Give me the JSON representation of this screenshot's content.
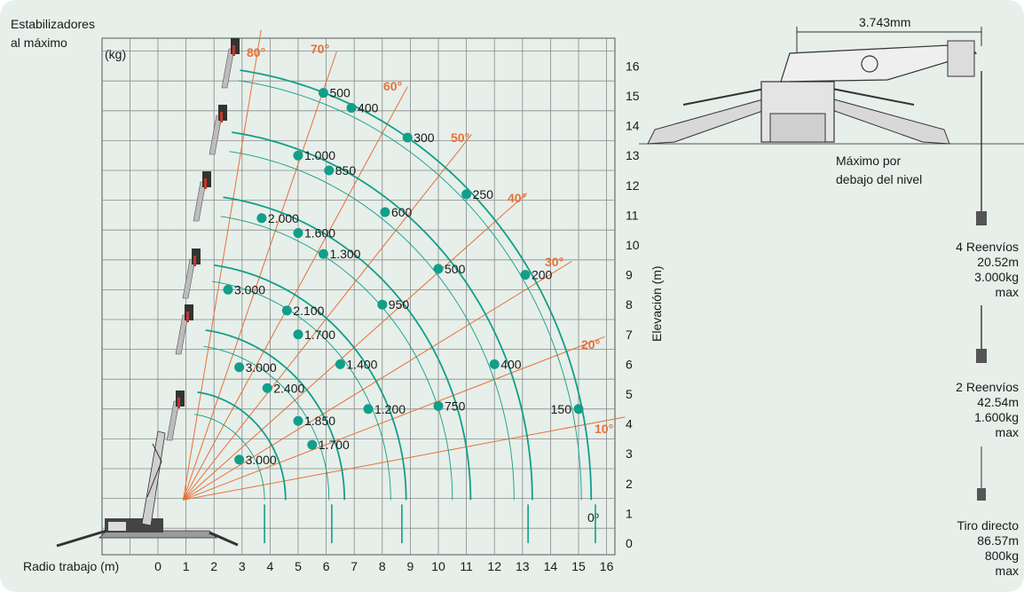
{
  "labels": {
    "stabilizers_line1": "Estabilizadores",
    "stabilizers_line2": "al máximo",
    "kg": "(kg)",
    "radius": "Radio trabajo (m)",
    "elevation": "Elevación (m)",
    "dimension": "3.743mm",
    "below_line1": "Máximo por",
    "below_line2": "debajo del nivel"
  },
  "x_ticks": [
    "0",
    "1",
    "2",
    "3",
    "4",
    "5",
    "6",
    "7",
    "8",
    "9",
    "10",
    "11",
    "12",
    "13",
    "14",
    "15",
    "16"
  ],
  "y_ticks": [
    "0",
    "1",
    "2",
    "3",
    "4",
    "5",
    "6",
    "7",
    "8",
    "9",
    "10",
    "11",
    "12",
    "13",
    "14",
    "15",
    "16"
  ],
  "angles": [
    {
      "label": "80°",
      "deg": 80
    },
    {
      "label": "70°",
      "deg": 70
    },
    {
      "label": "60°",
      "deg": 60
    },
    {
      "label": "50°",
      "deg": 50
    },
    {
      "label": "40°",
      "deg": 40
    },
    {
      "label": "30°",
      "deg": 30
    },
    {
      "label": "20°",
      "deg": 20
    },
    {
      "label": "10°",
      "deg": 10
    },
    {
      "label": "0º",
      "deg": 0
    }
  ],
  "boom_pivot": {
    "x": 0.9,
    "y": 1.45
  },
  "boom_lengths": [
    3.3,
    5.4,
    7.6,
    9.9,
    12.1,
    14.2
  ],
  "thin_arcs": [
    2.9,
    5.2,
    7.4,
    9.6,
    11.8,
    14.2
  ],
  "ground_ends": [
    3.8,
    6.2,
    8.7,
    13.2,
    15.6
  ],
  "load_points": [
    {
      "x": 2.9,
      "y": 2.8,
      "label": "3.000"
    },
    {
      "x": 2.9,
      "y": 5.9,
      "label": "3.000"
    },
    {
      "x": 2.5,
      "y": 8.5,
      "label": "3.000"
    },
    {
      "x": 3.7,
      "y": 10.9,
      "label": "2.000"
    },
    {
      "x": 5.0,
      "y": 13.0,
      "label": "1.000"
    },
    {
      "x": 5.9,
      "y": 15.1,
      "label": "500"
    },
    {
      "x": 3.9,
      "y": 5.2,
      "label": "2.400"
    },
    {
      "x": 4.6,
      "y": 7.8,
      "label": "2.100"
    },
    {
      "x": 5.0,
      "y": 10.4,
      "label": "1.600"
    },
    {
      "x": 6.1,
      "y": 12.5,
      "label": "850"
    },
    {
      "x": 6.9,
      "y": 14.6,
      "label": "400"
    },
    {
      "x": 5.0,
      "y": 4.1,
      "label": "1.850"
    },
    {
      "x": 5.5,
      "y": 3.3,
      "label": "1.700"
    },
    {
      "x": 5.0,
      "y": 7.0,
      "label": "1.700"
    },
    {
      "x": 5.9,
      "y": 9.7,
      "label": "1.300"
    },
    {
      "x": 8.9,
      "y": 13.6,
      "label": "300"
    },
    {
      "x": 6.5,
      "y": 6.0,
      "label": "1.400"
    },
    {
      "x": 8.0,
      "y": 8.0,
      "label": "950"
    },
    {
      "x": 8.1,
      "y": 11.1,
      "label": "600"
    },
    {
      "x": 11.0,
      "y": 11.7,
      "label": "250"
    },
    {
      "x": 7.5,
      "y": 4.5,
      "label": "1.200"
    },
    {
      "x": 10.0,
      "y": 9.2,
      "label": "500"
    },
    {
      "x": 10.0,
      "y": 4.6,
      "label": "750"
    },
    {
      "x": 12.0,
      "y": 6.0,
      "label": "400"
    },
    {
      "x": 13.1,
      "y": 9.0,
      "label": "200"
    },
    {
      "x": 15.0,
      "y": 4.5,
      "label": "150",
      "left": true
    }
  ],
  "reevings": [
    {
      "name": "4 Reenvíos",
      "length": "20.52m",
      "load": "3.000kg",
      "max": "max"
    },
    {
      "name": "2 Reenvíos",
      "length": "42.54m",
      "load": "1.600kg",
      "max": "max"
    },
    {
      "name": "Tiro directo",
      "length": "86.57m",
      "load": "800kg",
      "max": "max"
    }
  ],
  "colors": {
    "background": "#e6efe9",
    "grid": "#8a8a8a",
    "arc": "#129e8a",
    "angle_line": "#e8703a",
    "dot": "#129e8a"
  }
}
